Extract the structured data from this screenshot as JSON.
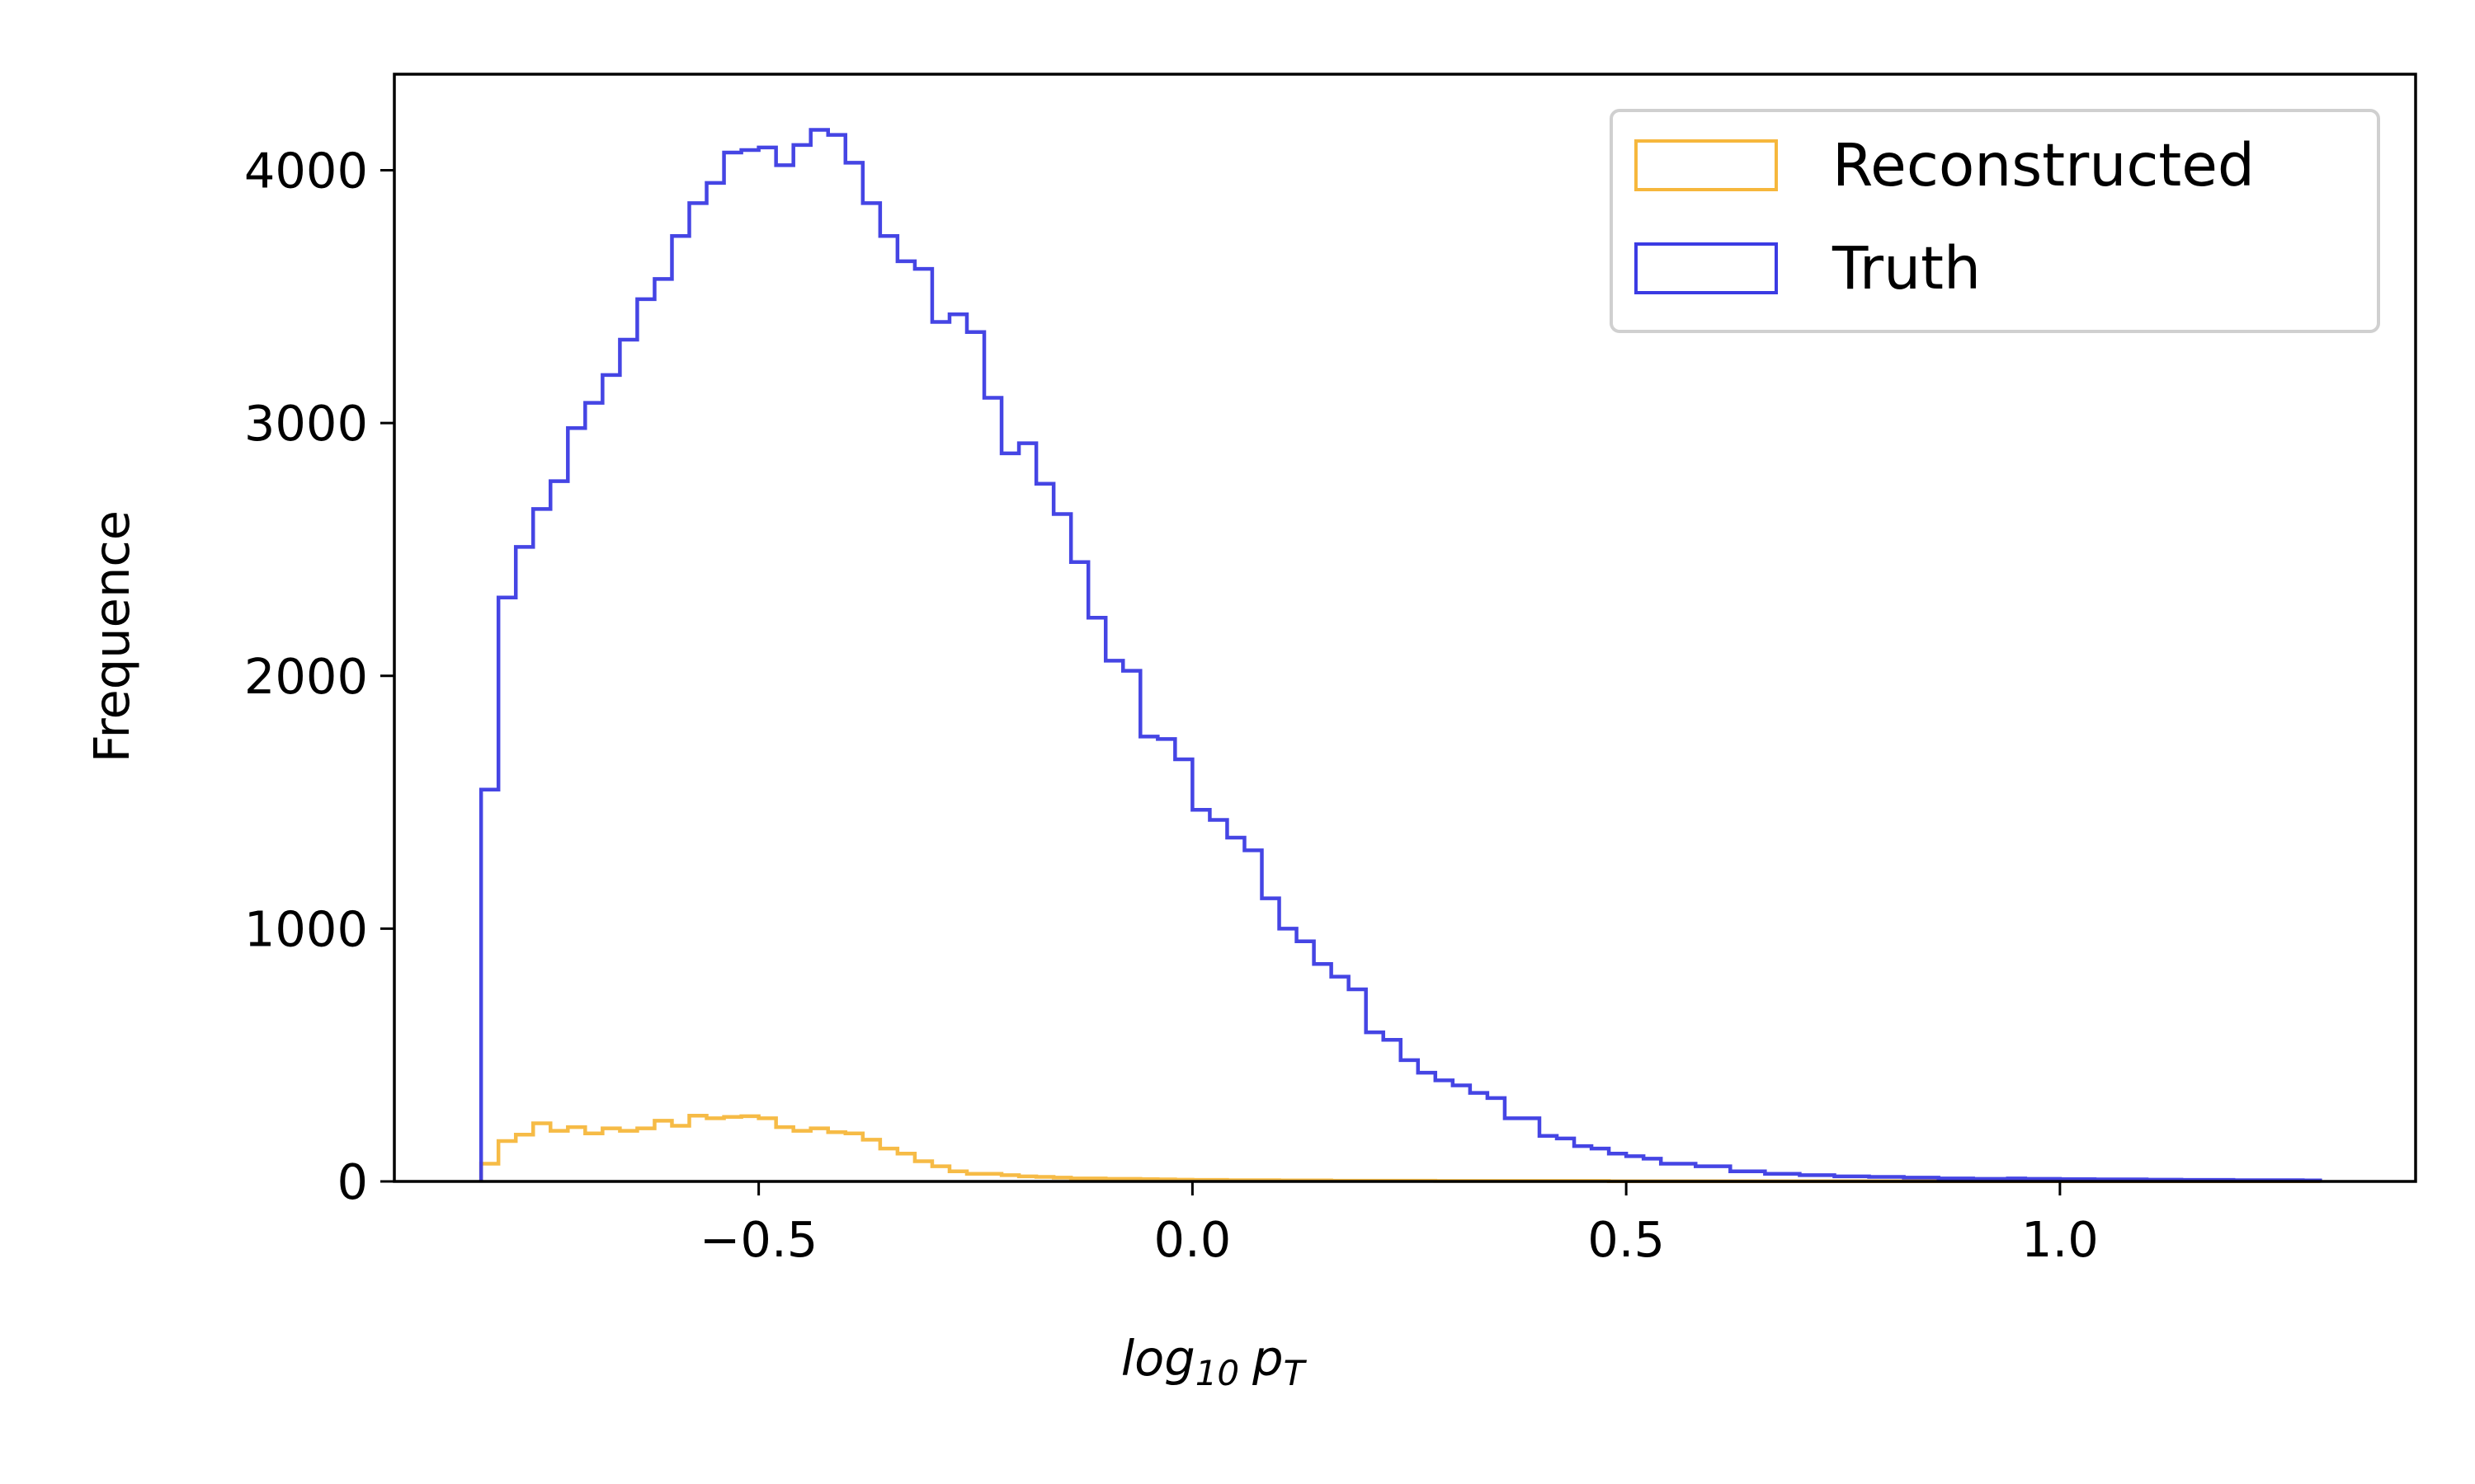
{
  "chart_data": {
    "type": "histogram",
    "title": "",
    "xlabel": "log",
    "xlabel_sub": "10",
    "xlabel_var": "p",
    "xlabel_var_sub": "T",
    "ylabel": "Frequence",
    "xlim": [
      -0.92,
      1.41
    ],
    "ylim": [
      0,
      4380
    ],
    "x_ticks": [
      {
        "value": -0.5,
        "label": "−0.5"
      },
      {
        "value": 0.0,
        "label": "0.0"
      },
      {
        "value": 0.5,
        "label": "0.5"
      },
      {
        "value": 1.0,
        "label": "1.0"
      }
    ],
    "y_ticks": [
      {
        "value": 0,
        "label": "0"
      },
      {
        "value": 1000,
        "label": "1000"
      },
      {
        "value": 2000,
        "label": "2000"
      },
      {
        "value": 3000,
        "label": "3000"
      },
      {
        "value": 4000,
        "label": "4000"
      }
    ],
    "legend": {
      "position": "upper right"
    },
    "bins": {
      "start": -0.82,
      "width": 0.02,
      "count": 106
    },
    "series": [
      {
        "name": "Reconstructed",
        "color": "#f6b73c",
        "values": [
          70,
          160,
          185,
          230,
          200,
          215,
          190,
          210,
          200,
          210,
          240,
          220,
          260,
          250,
          255,
          258,
          250,
          215,
          200,
          210,
          195,
          190,
          165,
          130,
          110,
          80,
          60,
          40,
          30,
          30,
          25,
          20,
          18,
          15,
          12,
          12,
          10,
          10,
          9,
          8,
          7,
          6,
          6,
          5,
          5,
          5,
          4,
          4,
          4,
          3,
          3,
          3,
          3,
          3,
          3,
          2,
          2,
          2,
          2,
          2,
          2,
          2,
          2,
          2,
          2,
          1,
          1,
          1,
          1,
          1,
          1,
          1,
          1,
          1,
          1,
          1,
          1,
          1,
          1,
          1,
          1,
          1,
          1,
          1,
          1,
          1,
          1,
          1,
          1,
          1,
          1,
          1,
          1,
          1,
          1,
          1,
          1,
          1,
          1,
          1,
          1,
          1,
          1,
          1,
          1,
          1
        ]
      },
      {
        "name": "Truth",
        "color": "#3b3be3",
        "values": [
          1550,
          2310,
          2510,
          2660,
          2770,
          2980,
          3080,
          3190,
          3330,
          3490,
          3570,
          3740,
          3870,
          3950,
          4070,
          4080,
          4090,
          4020,
          4100,
          4160,
          4140,
          4030,
          3870,
          3740,
          3640,
          3610,
          3400,
          3430,
          3360,
          3100,
          2880,
          2920,
          2760,
          2640,
          2450,
          2230,
          2060,
          2020,
          1760,
          1750,
          1670,
          1470,
          1430,
          1360,
          1310,
          1120,
          1000,
          950,
          860,
          810,
          760,
          590,
          560,
          480,
          430,
          400,
          380,
          350,
          330,
          250,
          250,
          180,
          170,
          140,
          130,
          110,
          100,
          90,
          70,
          70,
          60,
          60,
          40,
          40,
          30,
          30,
          25,
          25,
          20,
          20,
          18,
          18,
          15,
          15,
          12,
          12,
          10,
          10,
          12,
          10,
          10,
          9,
          9,
          8,
          8,
          8,
          7,
          7,
          6,
          6,
          6,
          5,
          5,
          5,
          5,
          4
        ]
      }
    ]
  }
}
